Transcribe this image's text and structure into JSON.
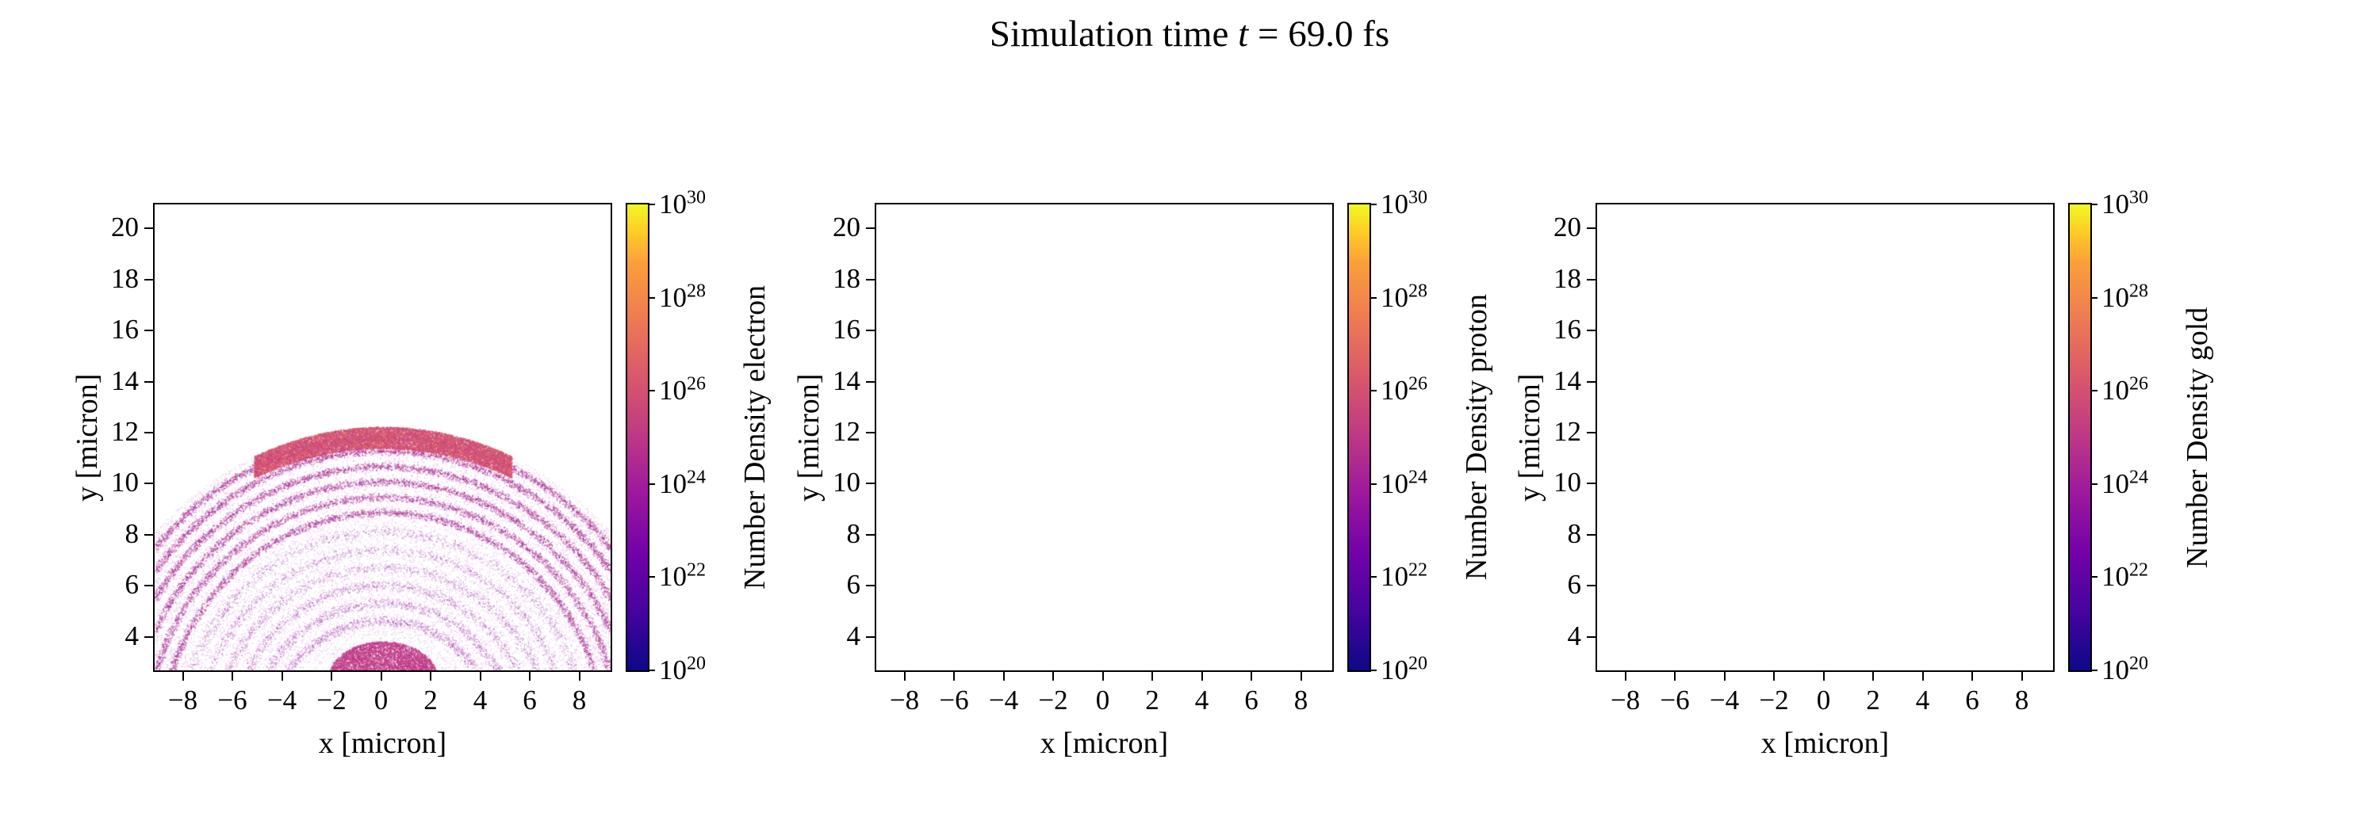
{
  "title": {
    "prefix": "Simulation time ",
    "variable": "t",
    "suffix": " = 69.0 fs"
  },
  "colormap": {
    "name": "plasma",
    "stops": [
      [
        0,
        "#0d0887"
      ],
      [
        0.125,
        "#46039f"
      ],
      [
        0.25,
        "#7201a8"
      ],
      [
        0.375,
        "#9c179e"
      ],
      [
        0.5,
        "#bd3786"
      ],
      [
        0.625,
        "#d8576b"
      ],
      [
        0.75,
        "#ed7953"
      ],
      [
        0.875,
        "#fb9f3a"
      ],
      [
        0.9375,
        "#fdca26"
      ],
      [
        1,
        "#f0f921"
      ]
    ]
  },
  "chart_data": [
    {
      "type": "scatter",
      "species": "electron",
      "xlabel": "x [micron]",
      "ylabel": "y [micron]",
      "xlim": [
        -9.2,
        9.2
      ],
      "ylim": [
        2.75,
        21.0
      ],
      "xticks": [
        -8,
        -6,
        -4,
        -2,
        0,
        2,
        4,
        6,
        8
      ],
      "yticks": [
        4,
        6,
        8,
        10,
        12,
        14,
        16,
        18,
        20
      ],
      "grid": false,
      "colorbar": {
        "label": "Number Density electron",
        "scale": "log",
        "range": [
          1e+20,
          1e+30
        ],
        "tick_exponents": [
          20,
          22,
          24,
          26,
          28,
          30
        ]
      },
      "has_data": true,
      "description": "Dome-shaped expanding plasma plume of concentric arc shells, apex near y=12.3 at x=0, arcs descending toward both sides, diffuse speckle filling the dome interior, dense magenta blob at bottom center near y=3",
      "scatter": {
        "seed": 7,
        "dome_radius": 12.3,
        "center": [
          0,
          0
        ],
        "band": {
          "x_half": 5.2,
          "depth": 0.85,
          "count": 12000,
          "alpha": 0.55,
          "size": 1.8,
          "palette": [
            "#cc4778",
            "#d0507a",
            "#d8576b",
            "#c33d80",
            "#e26658"
          ]
        },
        "arcs": {
          "radii": [
            11.9,
            11.35,
            10.75,
            10.15,
            9.55,
            8.95
          ],
          "count_per": 2200,
          "jitter": 0.09,
          "alpha": 0.5,
          "size": 1.6,
          "palette": [
            "#9c179e",
            "#a32a94",
            "#b12a90",
            "#bd3786",
            "#8b09a5",
            "#c13b82"
          ]
        },
        "faint_arcs": {
          "radii": [
            8.2,
            7.5,
            6.8,
            6.1,
            5.4,
            4.7
          ],
          "count_per": 900,
          "jitter": 0.12,
          "alpha": 0.3,
          "size": 1.5,
          "palette": [
            "#8b09a5",
            "#9c179e",
            "#7e03a8",
            "#a82296"
          ]
        },
        "fill": {
          "count": 16000,
          "alpha": 0.15,
          "size": 1.4,
          "palette": [
            "#9c179e",
            "#8b09a5",
            "#b12a90",
            "#7e03a8"
          ]
        },
        "blob": {
          "cx": 0,
          "cy": 2.45,
          "rx": 2.2,
          "ry": 1.45,
          "count": 9000,
          "alpha": 0.6,
          "size": 1.8,
          "palette": [
            "#bd3786",
            "#b93188",
            "#c54180"
          ]
        }
      }
    },
    {
      "type": "scatter",
      "species": "proton",
      "xlabel": "x [micron]",
      "ylabel": "y [micron]",
      "xlim": [
        -9.2,
        9.2
      ],
      "ylim": [
        2.75,
        21.0
      ],
      "xticks": [
        -8,
        -6,
        -4,
        -2,
        0,
        2,
        4,
        6,
        8
      ],
      "yticks": [
        4,
        6,
        8,
        10,
        12,
        14,
        16,
        18,
        20
      ],
      "grid": false,
      "colorbar": {
        "label": "Number Density proton",
        "scale": "log",
        "range": [
          1e+20,
          1e+30
        ],
        "tick_exponents": [
          20,
          22,
          24,
          26,
          28,
          30
        ]
      },
      "has_data": false,
      "description": "Empty axes, no proton density visible",
      "scatter": null
    },
    {
      "type": "scatter",
      "species": "gold",
      "xlabel": "x [micron]",
      "ylabel": "y [micron]",
      "xlim": [
        -9.2,
        9.2
      ],
      "ylim": [
        2.75,
        21.0
      ],
      "xticks": [
        -8,
        -6,
        -4,
        -2,
        0,
        2,
        4,
        6,
        8
      ],
      "yticks": [
        4,
        6,
        8,
        10,
        12,
        14,
        16,
        18,
        20
      ],
      "grid": false,
      "colorbar": {
        "label": "Number Density gold",
        "scale": "log",
        "range": [
          1e+20,
          1e+30
        ],
        "tick_exponents": [
          20,
          22,
          24,
          26,
          28,
          30
        ]
      },
      "has_data": false,
      "description": "Empty axes, no gold density visible",
      "scatter": null
    }
  ]
}
